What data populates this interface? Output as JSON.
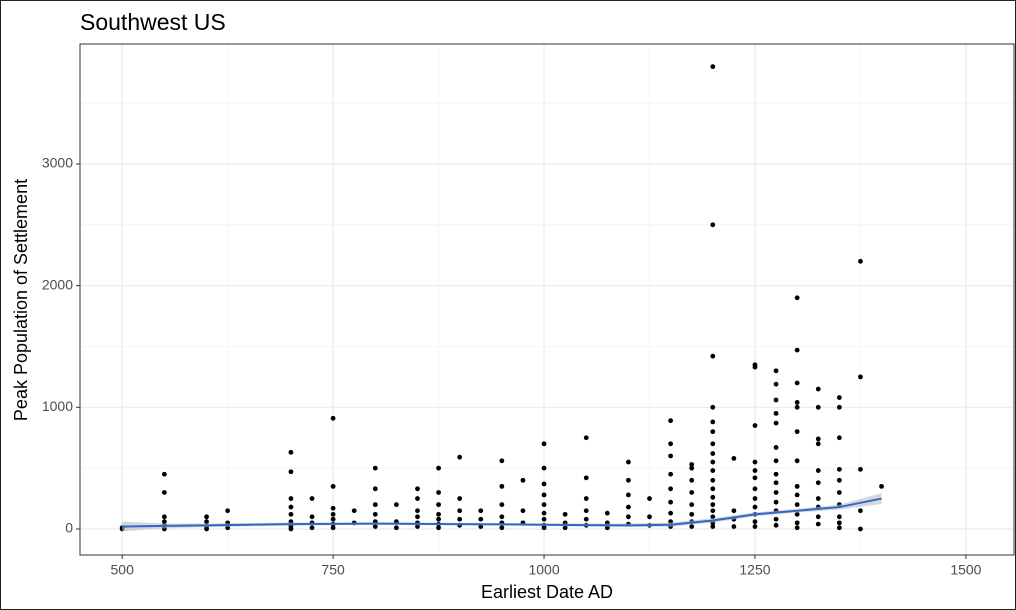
{
  "chart_data": {
    "type": "scatter",
    "title": "Southwest US",
    "x_label": "Earliest Date AD",
    "y_label": "Peak Population of Settlement",
    "xlim": [
      450,
      1557
    ],
    "ylim": [
      -214,
      3986
    ],
    "xticks": [
      500,
      750,
      1000,
      1250,
      1500
    ],
    "yticks": [
      0,
      1000,
      2000,
      3000
    ],
    "xminorticks": [
      625,
      875,
      1125,
      1375
    ],
    "yminorticks": [
      500,
      1500,
      2500,
      3500
    ],
    "grid": true,
    "point_color": "#000000",
    "line_color": "#3366cc",
    "band_color": "#bdbdbd",
    "x": [
      500,
      500,
      550,
      550,
      550,
      550,
      550,
      550,
      550,
      600,
      600,
      600,
      600,
      625,
      625,
      625,
      700,
      700,
      700,
      700,
      700,
      700,
      700,
      700,
      725,
      725,
      725,
      725,
      750,
      750,
      750,
      750,
      750,
      750,
      750,
      775,
      775,
      800,
      800,
      800,
      800,
      800,
      800,
      825,
      825,
      825,
      850,
      850,
      850,
      850,
      850,
      850,
      875,
      875,
      875,
      875,
      875,
      875,
      875,
      900,
      900,
      900,
      900,
      900,
      925,
      925,
      925,
      950,
      950,
      950,
      950,
      950,
      950,
      975,
      975,
      975,
      1000,
      1000,
      1000,
      1000,
      1000,
      1000,
      1000,
      1000,
      1000,
      1025,
      1025,
      1025,
      1050,
      1050,
      1050,
      1050,
      1050,
      1050,
      1075,
      1075,
      1075,
      1100,
      1100,
      1100,
      1100,
      1100,
      1100,
      1125,
      1125,
      1125,
      1150,
      1150,
      1150,
      1150,
      1150,
      1150,
      1150,
      1150,
      1150,
      1175,
      1175,
      1175,
      1175,
      1175,
      1175,
      1175,
      1175,
      1200,
      1200,
      1200,
      1200,
      1200,
      1200,
      1200,
      1200,
      1200,
      1200,
      1200,
      1200,
      1200,
      1200,
      1200,
      1200,
      1200,
      1200,
      1225,
      1225,
      1225,
      1225,
      1250,
      1250,
      1250,
      1250,
      1250,
      1250,
      1250,
      1250,
      1250,
      1250,
      1250,
      1250,
      1275,
      1275,
      1275,
      1275,
      1275,
      1275,
      1275,
      1275,
      1275,
      1275,
      1275,
      1275,
      1275,
      1275,
      1300,
      1300,
      1300,
      1300,
      1300,
      1300,
      1300,
      1300,
      1300,
      1300,
      1300,
      1300,
      1300,
      1325,
      1325,
      1325,
      1325,
      1325,
      1325,
      1325,
      1325,
      1325,
      1325,
      1350,
      1350,
      1350,
      1350,
      1350,
      1350,
      1350,
      1350,
      1350,
      1350,
      1375,
      1375,
      1375,
      1375,
      1375,
      1400
    ],
    "y": [
      0,
      10,
      450,
      300,
      100,
      60,
      30,
      10,
      0,
      100,
      60,
      20,
      0,
      150,
      50,
      10,
      630,
      470,
      250,
      180,
      120,
      60,
      20,
      0,
      250,
      100,
      50,
      10,
      910,
      350,
      170,
      120,
      80,
      40,
      10,
      150,
      50,
      500,
      330,
      200,
      120,
      60,
      20,
      200,
      60,
      10,
      330,
      250,
      150,
      100,
      50,
      20,
      500,
      300,
      200,
      120,
      80,
      40,
      10,
      590,
      250,
      150,
      80,
      30,
      150,
      80,
      20,
      560,
      350,
      200,
      100,
      50,
      10,
      400,
      150,
      50,
      700,
      500,
      370,
      280,
      200,
      130,
      80,
      30,
      10,
      120,
      50,
      10,
      750,
      420,
      250,
      150,
      80,
      30,
      130,
      50,
      10,
      550,
      400,
      280,
      180,
      100,
      40,
      250,
      100,
      30,
      890,
      700,
      600,
      450,
      330,
      220,
      130,
      60,
      20,
      530,
      500,
      400,
      300,
      200,
      120,
      60,
      20,
      3800,
      2500,
      1420,
      1000,
      880,
      800,
      700,
      620,
      550,
      480,
      400,
      330,
      260,
      200,
      150,
      100,
      50,
      20,
      580,
      150,
      80,
      20,
      1350,
      1330,
      850,
      550,
      480,
      420,
      330,
      250,
      180,
      120,
      60,
      20,
      1300,
      1190,
      1060,
      950,
      870,
      670,
      560,
      450,
      380,
      300,
      220,
      150,
      80,
      30,
      1900,
      1470,
      1200,
      1040,
      1000,
      800,
      560,
      350,
      280,
      200,
      120,
      50,
      10,
      1150,
      1000,
      740,
      700,
      480,
      380,
      250,
      180,
      100,
      40,
      1080,
      1000,
      750,
      490,
      400,
      300,
      200,
      100,
      50,
      10,
      2200,
      1250,
      490,
      150,
      0,
      350
    ],
    "trend": {
      "x": [
        500,
        550,
        600,
        650,
        700,
        750,
        800,
        850,
        900,
        950,
        1000,
        1050,
        1100,
        1150,
        1200,
        1250,
        1300,
        1350,
        1400
      ],
      "y": [
        20,
        25,
        30,
        35,
        40,
        42,
        44,
        42,
        40,
        38,
        35,
        32,
        30,
        35,
        70,
        120,
        150,
        180,
        250
      ],
      "lower": [
        -20,
        5,
        15,
        22,
        28,
        32,
        34,
        32,
        30,
        28,
        25,
        20,
        16,
        18,
        52,
        104,
        134,
        160,
        205
      ],
      "upper": [
        60,
        45,
        45,
        48,
        52,
        52,
        54,
        52,
        50,
        48,
        45,
        44,
        44,
        52,
        88,
        136,
        166,
        200,
        295
      ]
    }
  }
}
